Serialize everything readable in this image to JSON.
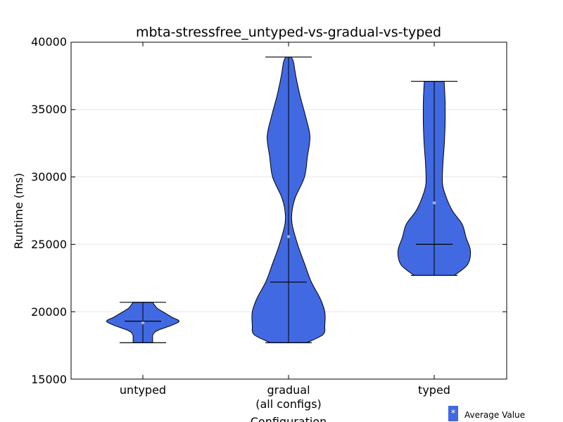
{
  "chart_data": {
    "type": "violin",
    "title": "mbta-stressfree_untyped-vs-gradual-vs-typed",
    "xlabel": "Configuration",
    "ylabel": "Runtime (ms)",
    "ylim": [
      15000,
      40000
    ],
    "yticks": [
      "15000",
      "20000",
      "25000",
      "30000",
      "35000",
      "40000"
    ],
    "grid": "horizontal",
    "violin_color": "#4169e1",
    "categories": [
      {
        "label": "untyped",
        "sublabel": ""
      },
      {
        "label": "gradual",
        "sublabel": "(all configs)"
      },
      {
        "label": "typed",
        "sublabel": ""
      }
    ],
    "series": [
      {
        "min": 17700,
        "max": 20700,
        "median": 19300,
        "mean": 19100,
        "density": [
          [
            17700,
            0.27
          ],
          [
            18000,
            0.27
          ],
          [
            18300,
            0.28
          ],
          [
            18600,
            0.4
          ],
          [
            19000,
            0.8
          ],
          [
            19300,
            1.0
          ],
          [
            19600,
            0.8
          ],
          [
            20000,
            0.55
          ],
          [
            20300,
            0.38
          ],
          [
            20700,
            0.27
          ]
        ]
      },
      {
        "min": 17700,
        "max": 38900,
        "median": 22200,
        "mean": 25500,
        "density": [
          [
            17700,
            0.5
          ],
          [
            18300,
            0.95
          ],
          [
            19000,
            1.0
          ],
          [
            20000,
            1.0
          ],
          [
            21000,
            0.87
          ],
          [
            22200,
            0.63
          ],
          [
            23500,
            0.45
          ],
          [
            25000,
            0.25
          ],
          [
            26500,
            0.1
          ],
          [
            27500,
            0.1
          ],
          [
            28500,
            0.19
          ],
          [
            30000,
            0.44
          ],
          [
            31500,
            0.52
          ],
          [
            33000,
            0.59
          ],
          [
            34500,
            0.47
          ],
          [
            36000,
            0.32
          ],
          [
            37500,
            0.2
          ],
          [
            38500,
            0.14
          ],
          [
            38900,
            0.08
          ]
        ]
      },
      {
        "min": 22700,
        "max": 37100,
        "median": 25000,
        "mean": 28000,
        "density": [
          [
            22700,
            0.56
          ],
          [
            23500,
            0.92
          ],
          [
            24500,
            1.0
          ],
          [
            25500,
            0.88
          ],
          [
            26500,
            0.77
          ],
          [
            27500,
            0.5
          ],
          [
            28500,
            0.33
          ],
          [
            29500,
            0.23
          ],
          [
            31000,
            0.24
          ],
          [
            32500,
            0.28
          ],
          [
            34000,
            0.3
          ],
          [
            35500,
            0.3
          ],
          [
            36800,
            0.28
          ],
          [
            37100,
            0.27
          ]
        ]
      }
    ],
    "legend": {
      "label": "Average Value",
      "marker": "*",
      "position": "bottom-right"
    }
  }
}
